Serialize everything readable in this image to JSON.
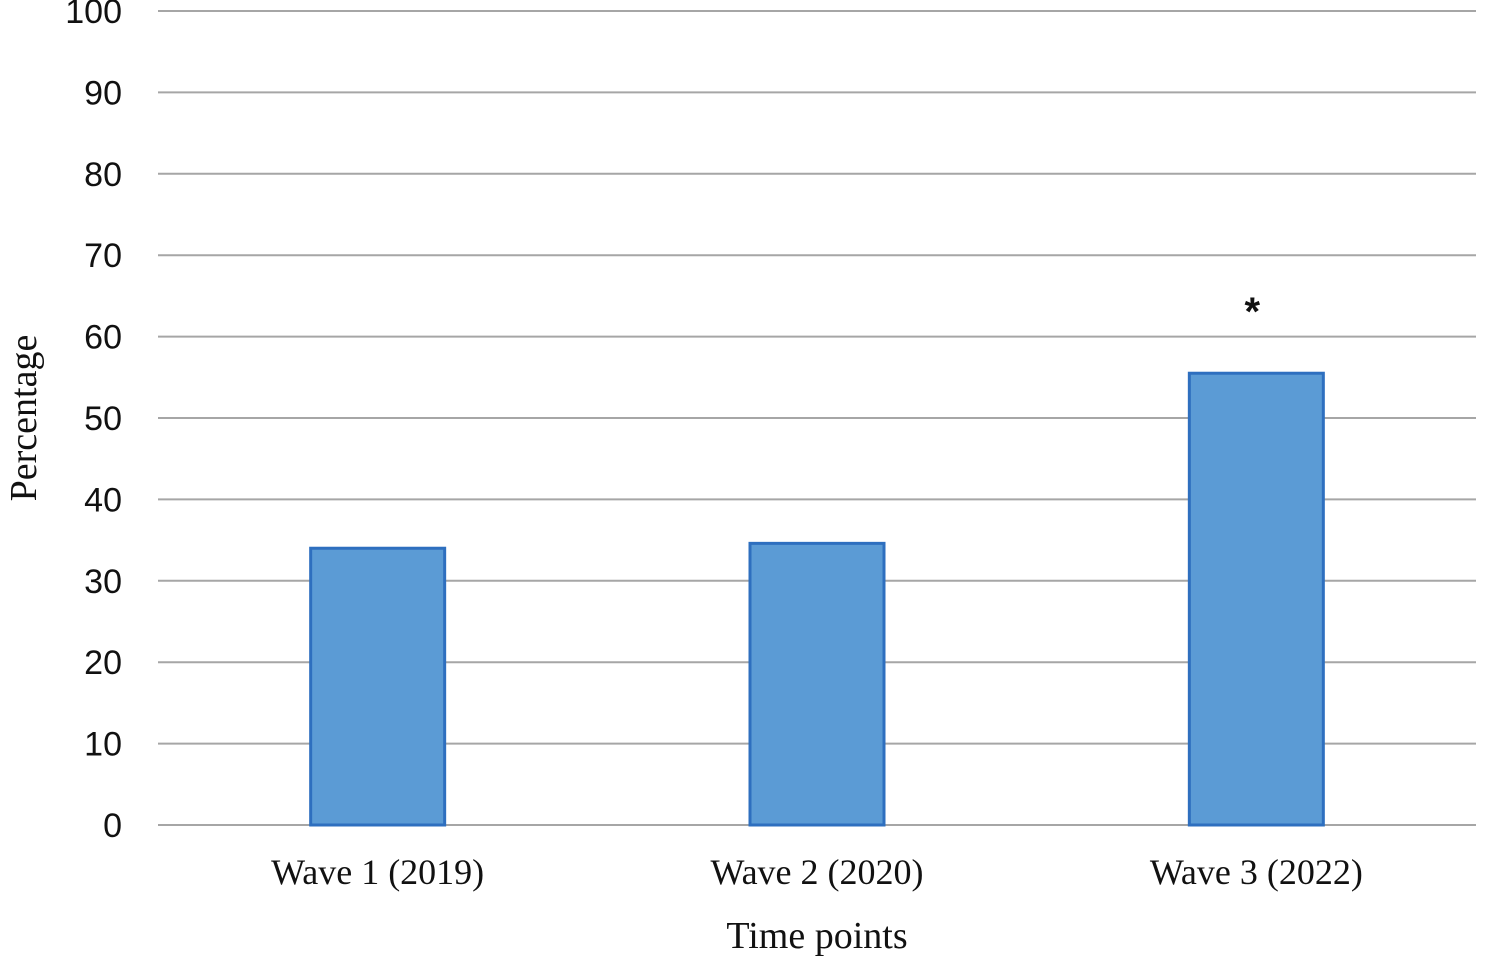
{
  "chart_data": {
    "type": "bar",
    "title": "",
    "xlabel": "Time points",
    "ylabel": "Percentage",
    "categories": [
      "Wave 1 (2019)",
      "Wave 2 (2020)",
      "Wave 3 (2022)"
    ],
    "values": [
      34,
      34.6,
      55.5
    ],
    "ylim": [
      0,
      100
    ],
    "yticks": [
      0,
      10,
      20,
      30,
      40,
      50,
      60,
      70,
      80,
      90,
      100
    ],
    "grid": true,
    "legend": "none",
    "bar_color": "#5b9bd5",
    "bar_edge_color": "#2e6fbf",
    "annotations": [
      {
        "category": "Wave 3 (2022)",
        "text": "*"
      }
    ]
  }
}
